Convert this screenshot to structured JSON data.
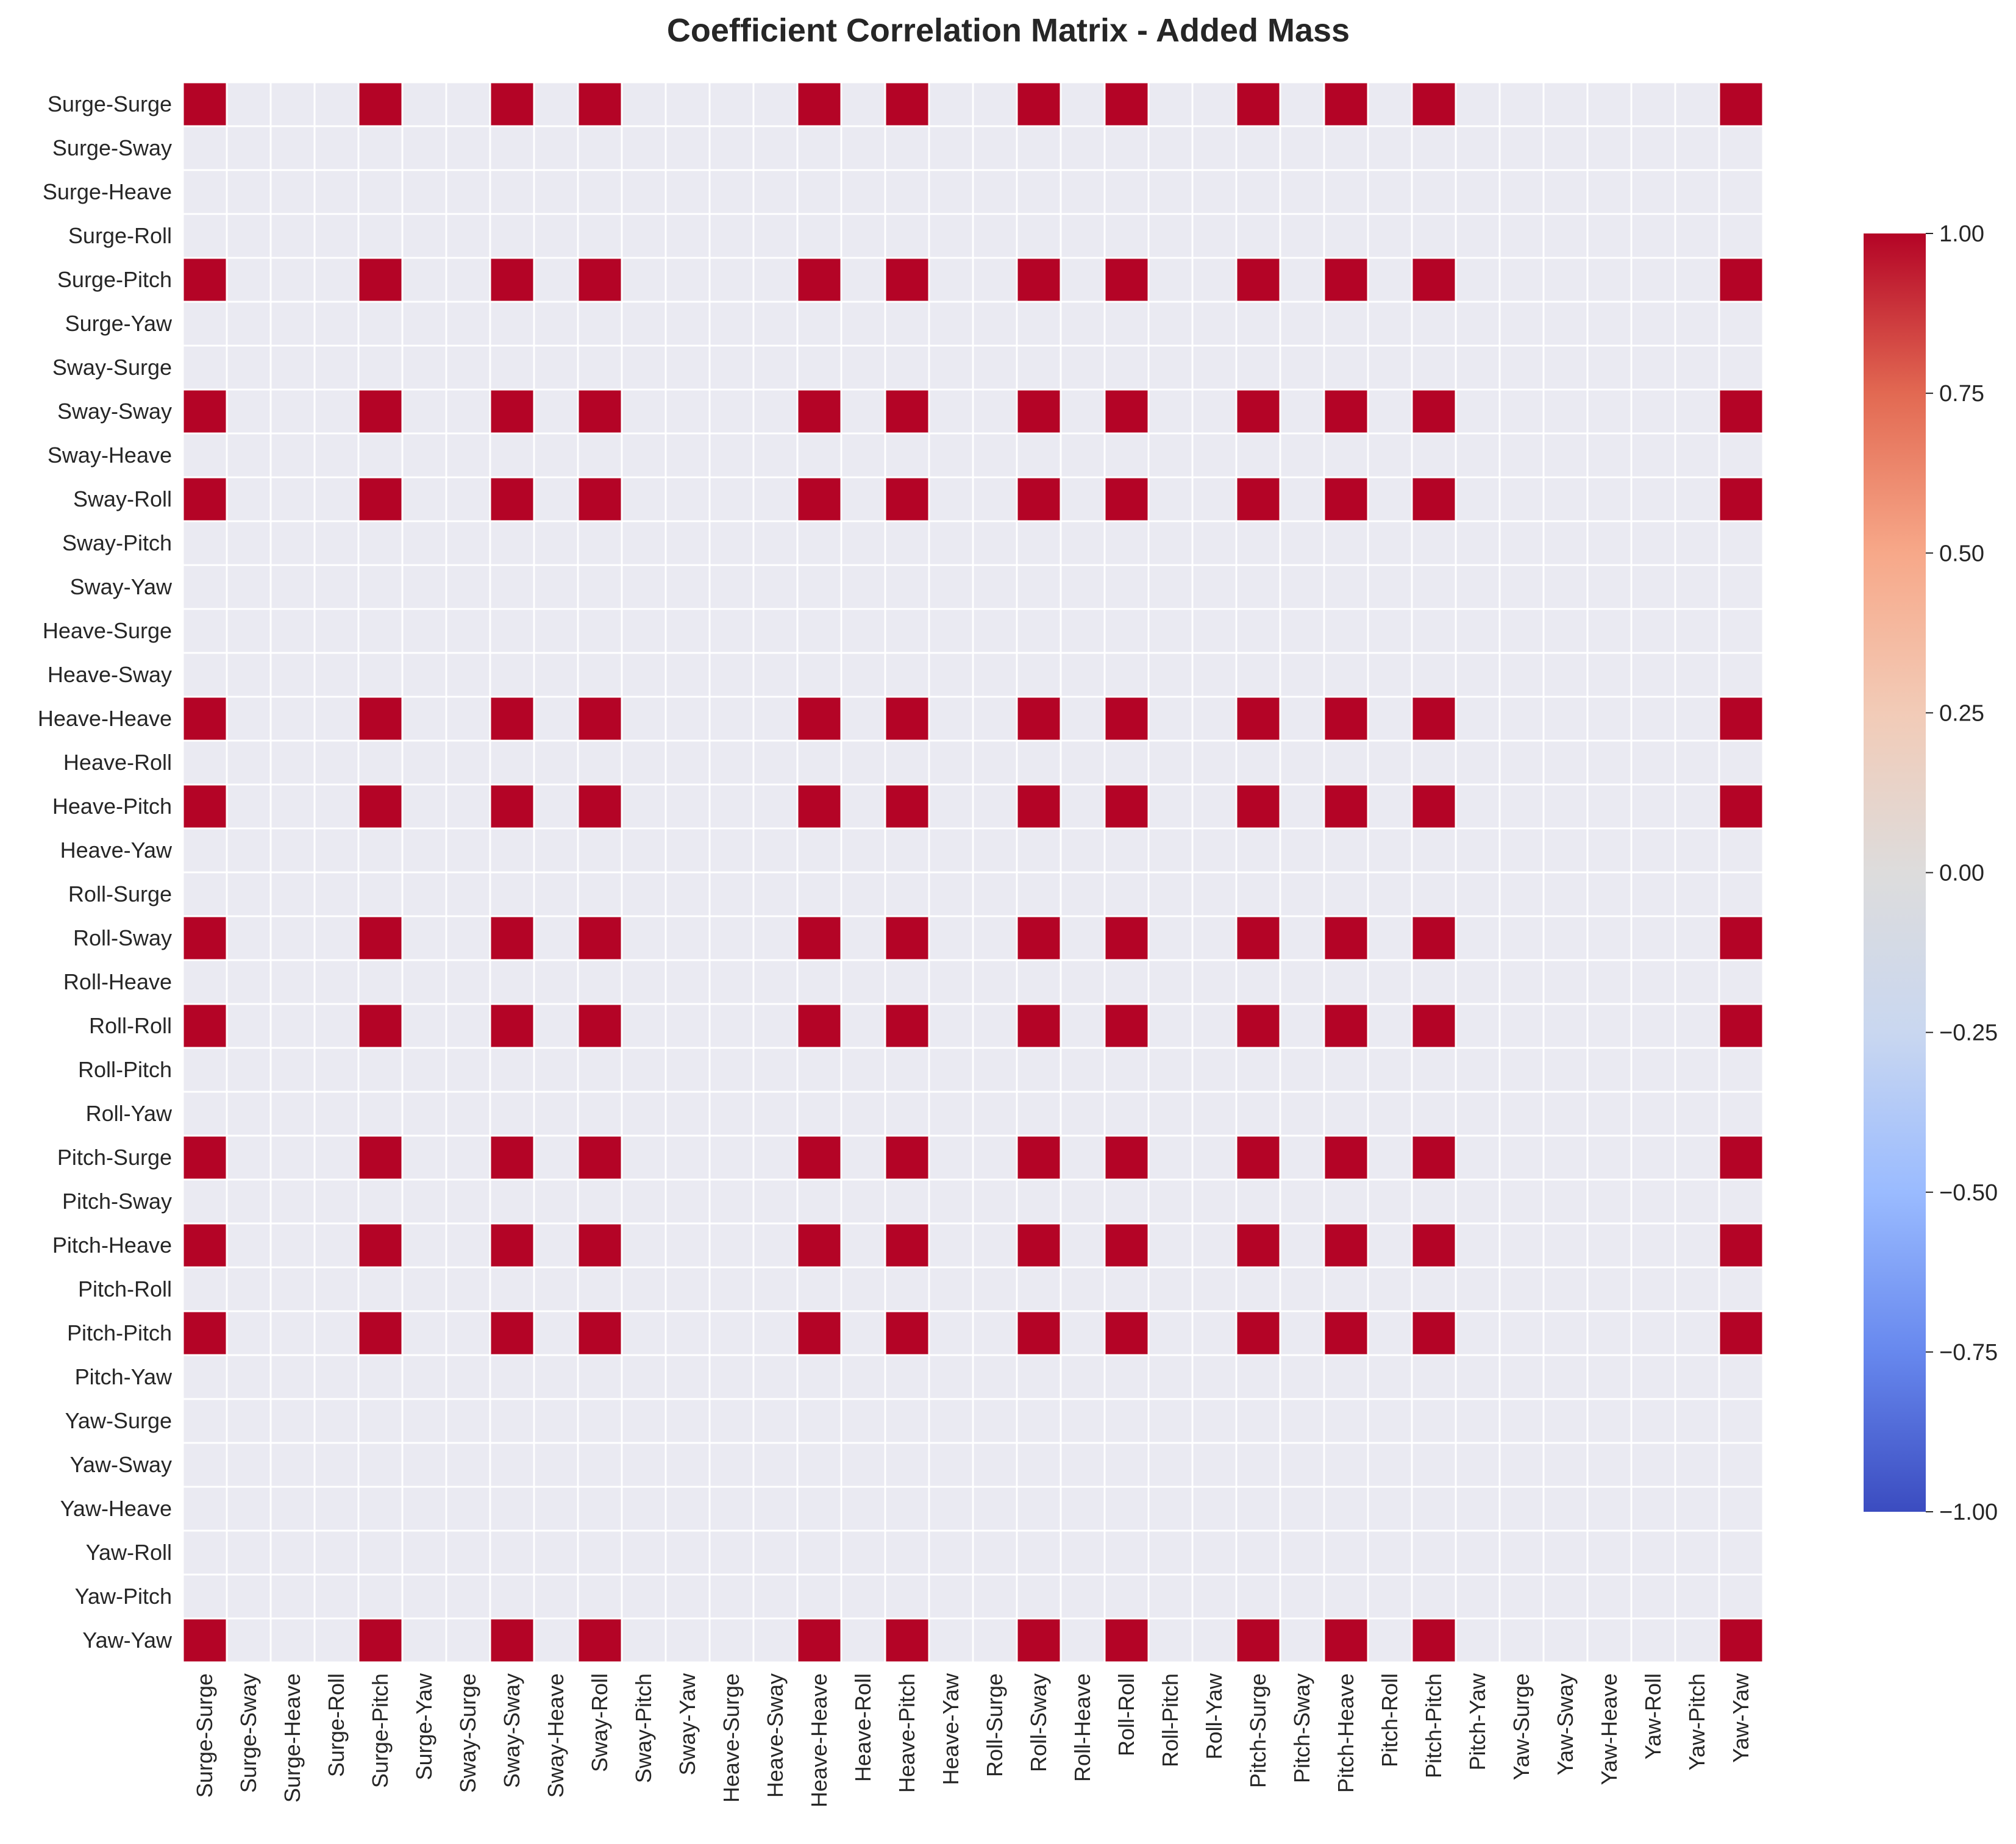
{
  "chart_data": {
    "type": "heatmap",
    "title": "Coefficient Correlation Matrix - Added Mass",
    "labels": [
      "Surge-Surge",
      "Surge-Sway",
      "Surge-Heave",
      "Surge-Roll",
      "Surge-Pitch",
      "Surge-Yaw",
      "Sway-Surge",
      "Sway-Sway",
      "Sway-Heave",
      "Sway-Roll",
      "Sway-Pitch",
      "Sway-Yaw",
      "Heave-Surge",
      "Heave-Sway",
      "Heave-Heave",
      "Heave-Roll",
      "Heave-Pitch",
      "Heave-Yaw",
      "Roll-Surge",
      "Roll-Sway",
      "Roll-Heave",
      "Roll-Roll",
      "Roll-Pitch",
      "Roll-Yaw",
      "Pitch-Surge",
      "Pitch-Sway",
      "Pitch-Heave",
      "Pitch-Roll",
      "Pitch-Pitch",
      "Pitch-Yaw",
      "Yaw-Surge",
      "Yaw-Sway",
      "Yaw-Heave",
      "Yaw-Roll",
      "Yaw-Pitch",
      "Yaw-Yaw"
    ],
    "correlated_indices": [
      0,
      4,
      7,
      9,
      14,
      16,
      19,
      21,
      24,
      26,
      28,
      35
    ],
    "note_values": "Cells whose row and column are both in correlated_indices have correlation 1.00; all other cells are undefined (NaN, drawn as blank).",
    "colorscale": "coolwarm",
    "vmin": -1.0,
    "vmax": 1.0,
    "colorbar_ticks": [
      "1.00",
      "0.75",
      "0.50",
      "0.25",
      "0.00",
      "−0.25",
      "−0.50",
      "−0.75",
      "−1.00"
    ],
    "colorbar_tick_values": [
      1.0,
      0.75,
      0.5,
      0.25,
      0.0,
      -0.25,
      -0.5,
      -0.75,
      -1.0
    ],
    "cell_color_high": "#b40426",
    "cell_color_empty": "#eaeaf2",
    "grid_line_color": "#ffffff",
    "colorbar_stops": [
      "#3b4cc0",
      "#6788ee",
      "#9abbff",
      "#c9d7f0",
      "#dddcdc",
      "#f2cbb7",
      "#f7a889",
      "#e26952",
      "#b40426"
    ]
  }
}
